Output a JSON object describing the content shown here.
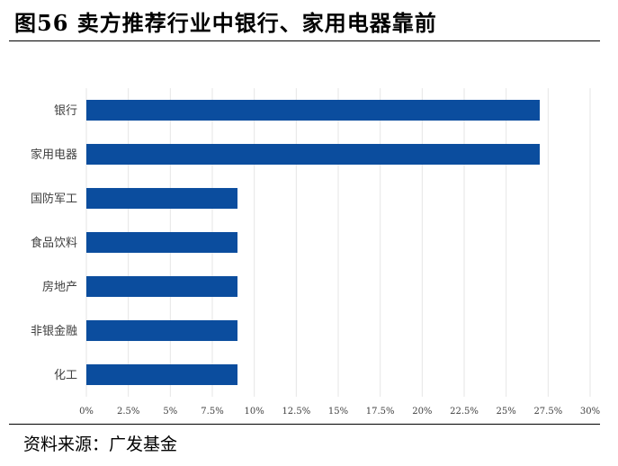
{
  "header": {
    "title": "图56  卖方推荐行业中银行、家用电器靠前"
  },
  "footer": {
    "source": "资料来源：广发基金"
  },
  "chart_data": {
    "type": "bar",
    "orientation": "horizontal",
    "title": "",
    "xlabel": "",
    "ylabel": "",
    "categories": [
      "银行",
      "家用电器",
      "国防军工",
      "食品饮料",
      "房地产",
      "非银金融",
      "化工"
    ],
    "values": [
      27.0,
      27.0,
      9.0,
      9.0,
      9.0,
      9.0,
      9.0
    ],
    "value_unit": "%",
    "xlim": [
      0,
      30
    ],
    "x_ticks": [
      0,
      2.5,
      5,
      7.5,
      10,
      12.5,
      15,
      17.5,
      20,
      22.5,
      25,
      27.5,
      30
    ],
    "x_tick_labels": [
      "0%",
      "2.5%",
      "5%",
      "7.5%",
      "10%",
      "12.5%",
      "15%",
      "17.5%",
      "20%",
      "22.5%",
      "25%",
      "27.5%",
      "30%"
    ],
    "grid": true,
    "bar_color": "#0b4d9e",
    "grid_color": "#e6e6e6"
  }
}
